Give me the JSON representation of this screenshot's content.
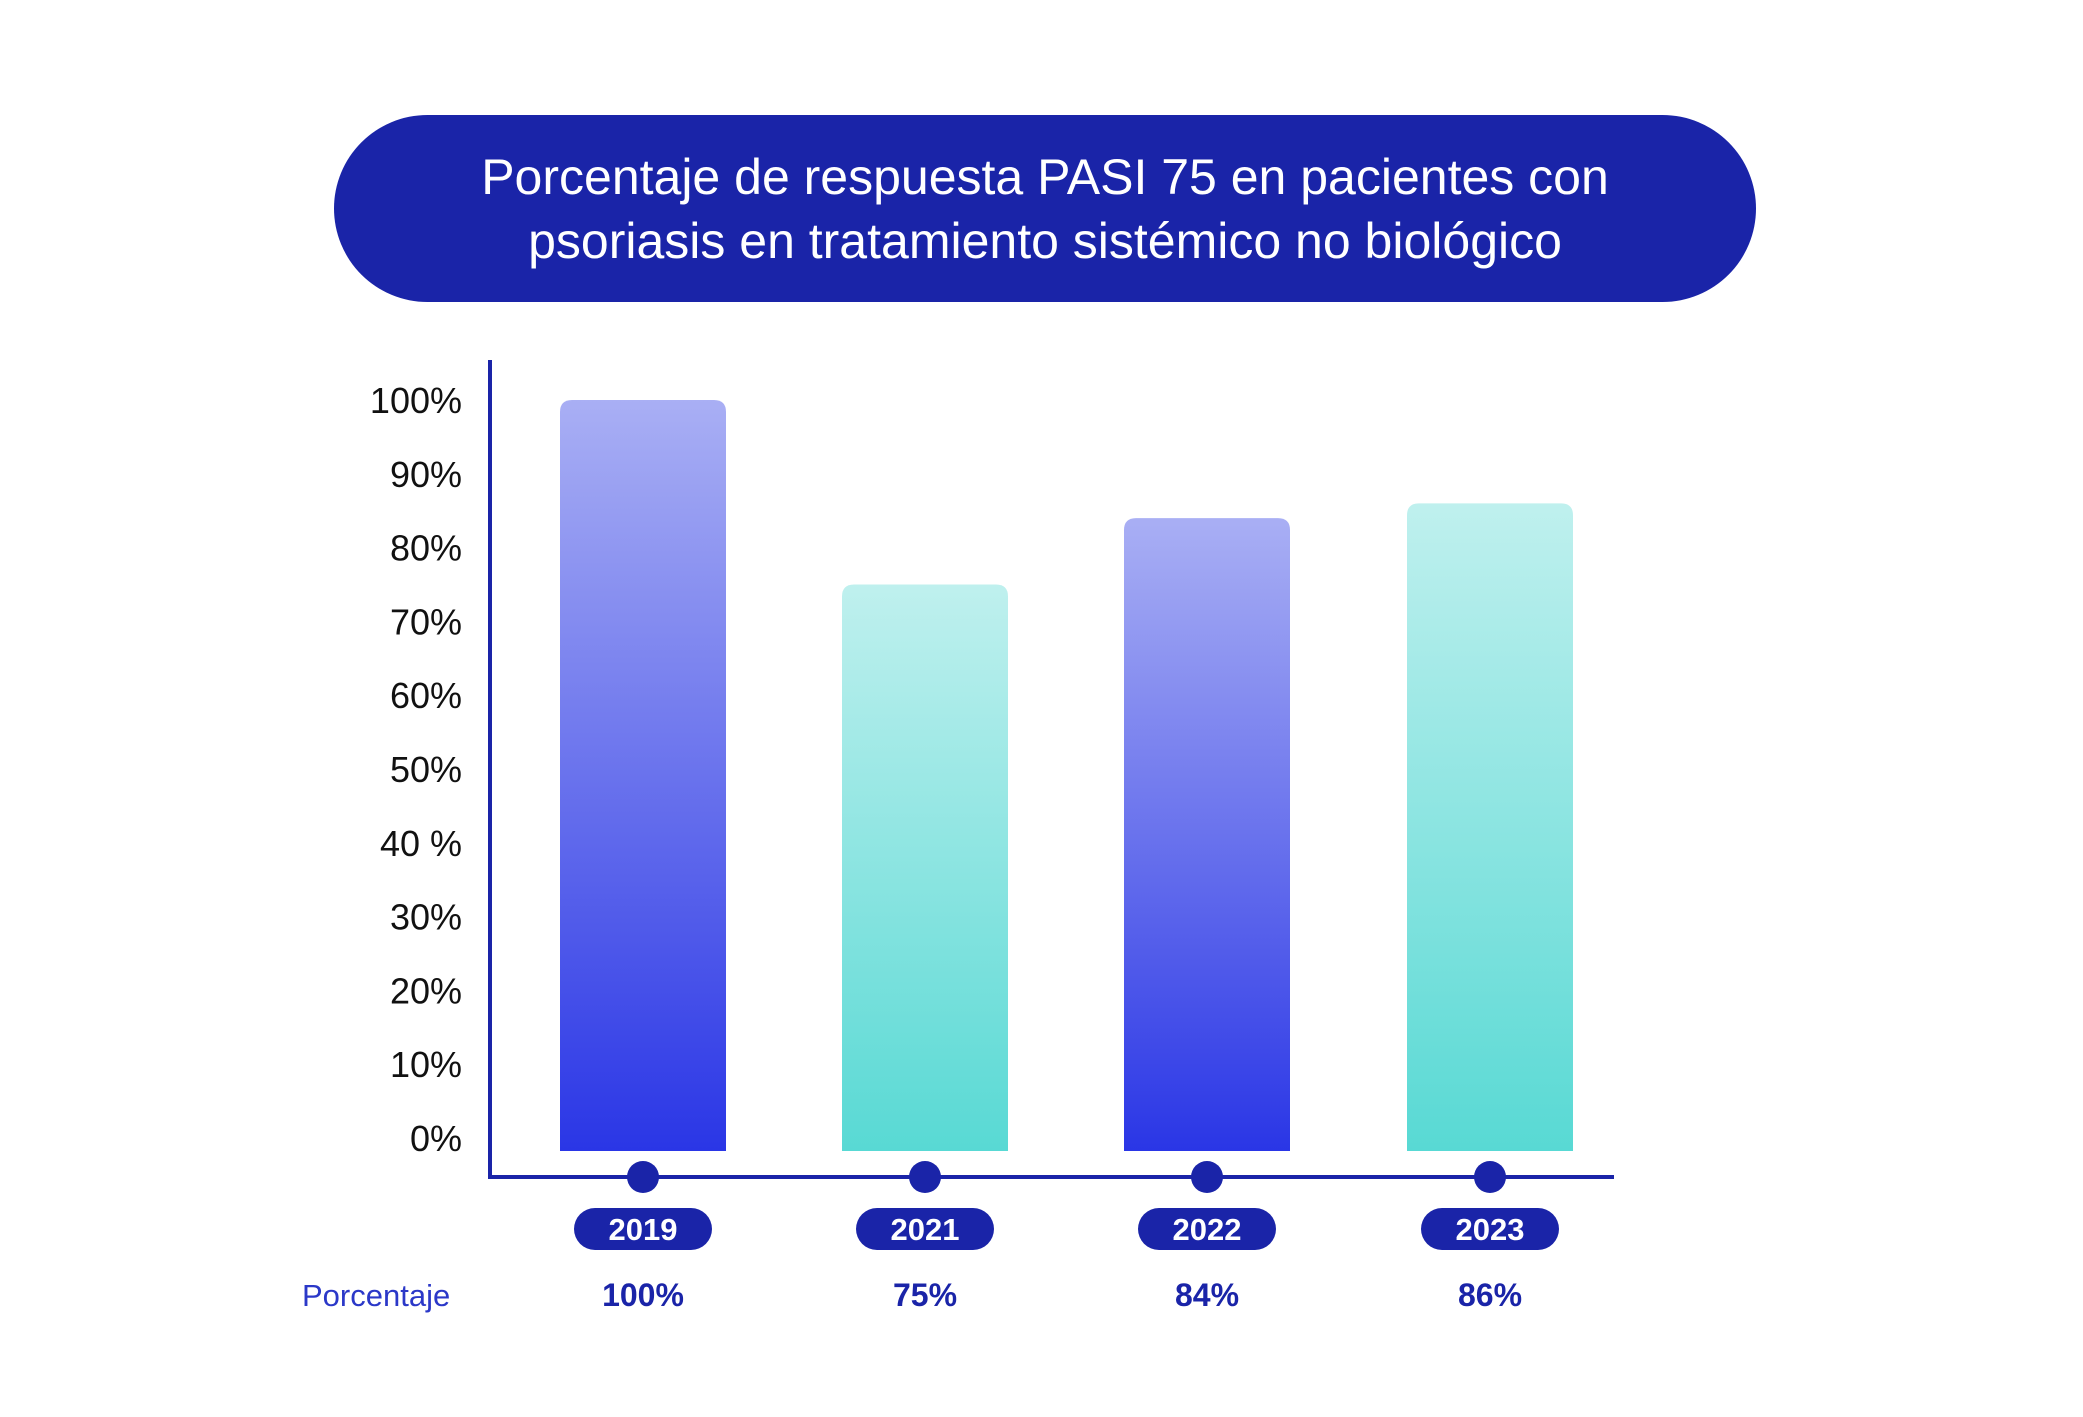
{
  "title": "Porcentaje de respuesta PASI 75 en pacientes con psoriasis en tratamiento sistémico no biológico",
  "colors": {
    "title_bg": "#1a24a8",
    "axis": "#1a24a8",
    "blue_top": "#a9aff4",
    "blue_bottom": "#2a36e6",
    "teal_top": "#bff0ee",
    "teal_bottom": "#58d9d4",
    "value_text": "#1a24a8",
    "row_label": "#2b38c8"
  },
  "chart_data": {
    "type": "bar",
    "title": "Porcentaje de respuesta PASI 75 en pacientes con psoriasis en tratamiento sistémico no biológico",
    "categories": [
      "2019",
      "2021",
      "2022",
      "2023"
    ],
    "values": [
      100,
      75,
      84,
      86
    ],
    "value_labels": [
      "100%",
      "75%",
      "84%",
      "86%"
    ],
    "bar_styles": [
      "blue",
      "teal",
      "blue",
      "teal"
    ],
    "y_ticks": [
      "0%",
      "10%",
      "20%",
      "30%",
      "40 %",
      "50%",
      "60%",
      "70%",
      "80%",
      "90%",
      "100%"
    ],
    "ylim": [
      0,
      100
    ],
    "row_label": "Porcentaje",
    "grid": false,
    "legend": "none"
  }
}
